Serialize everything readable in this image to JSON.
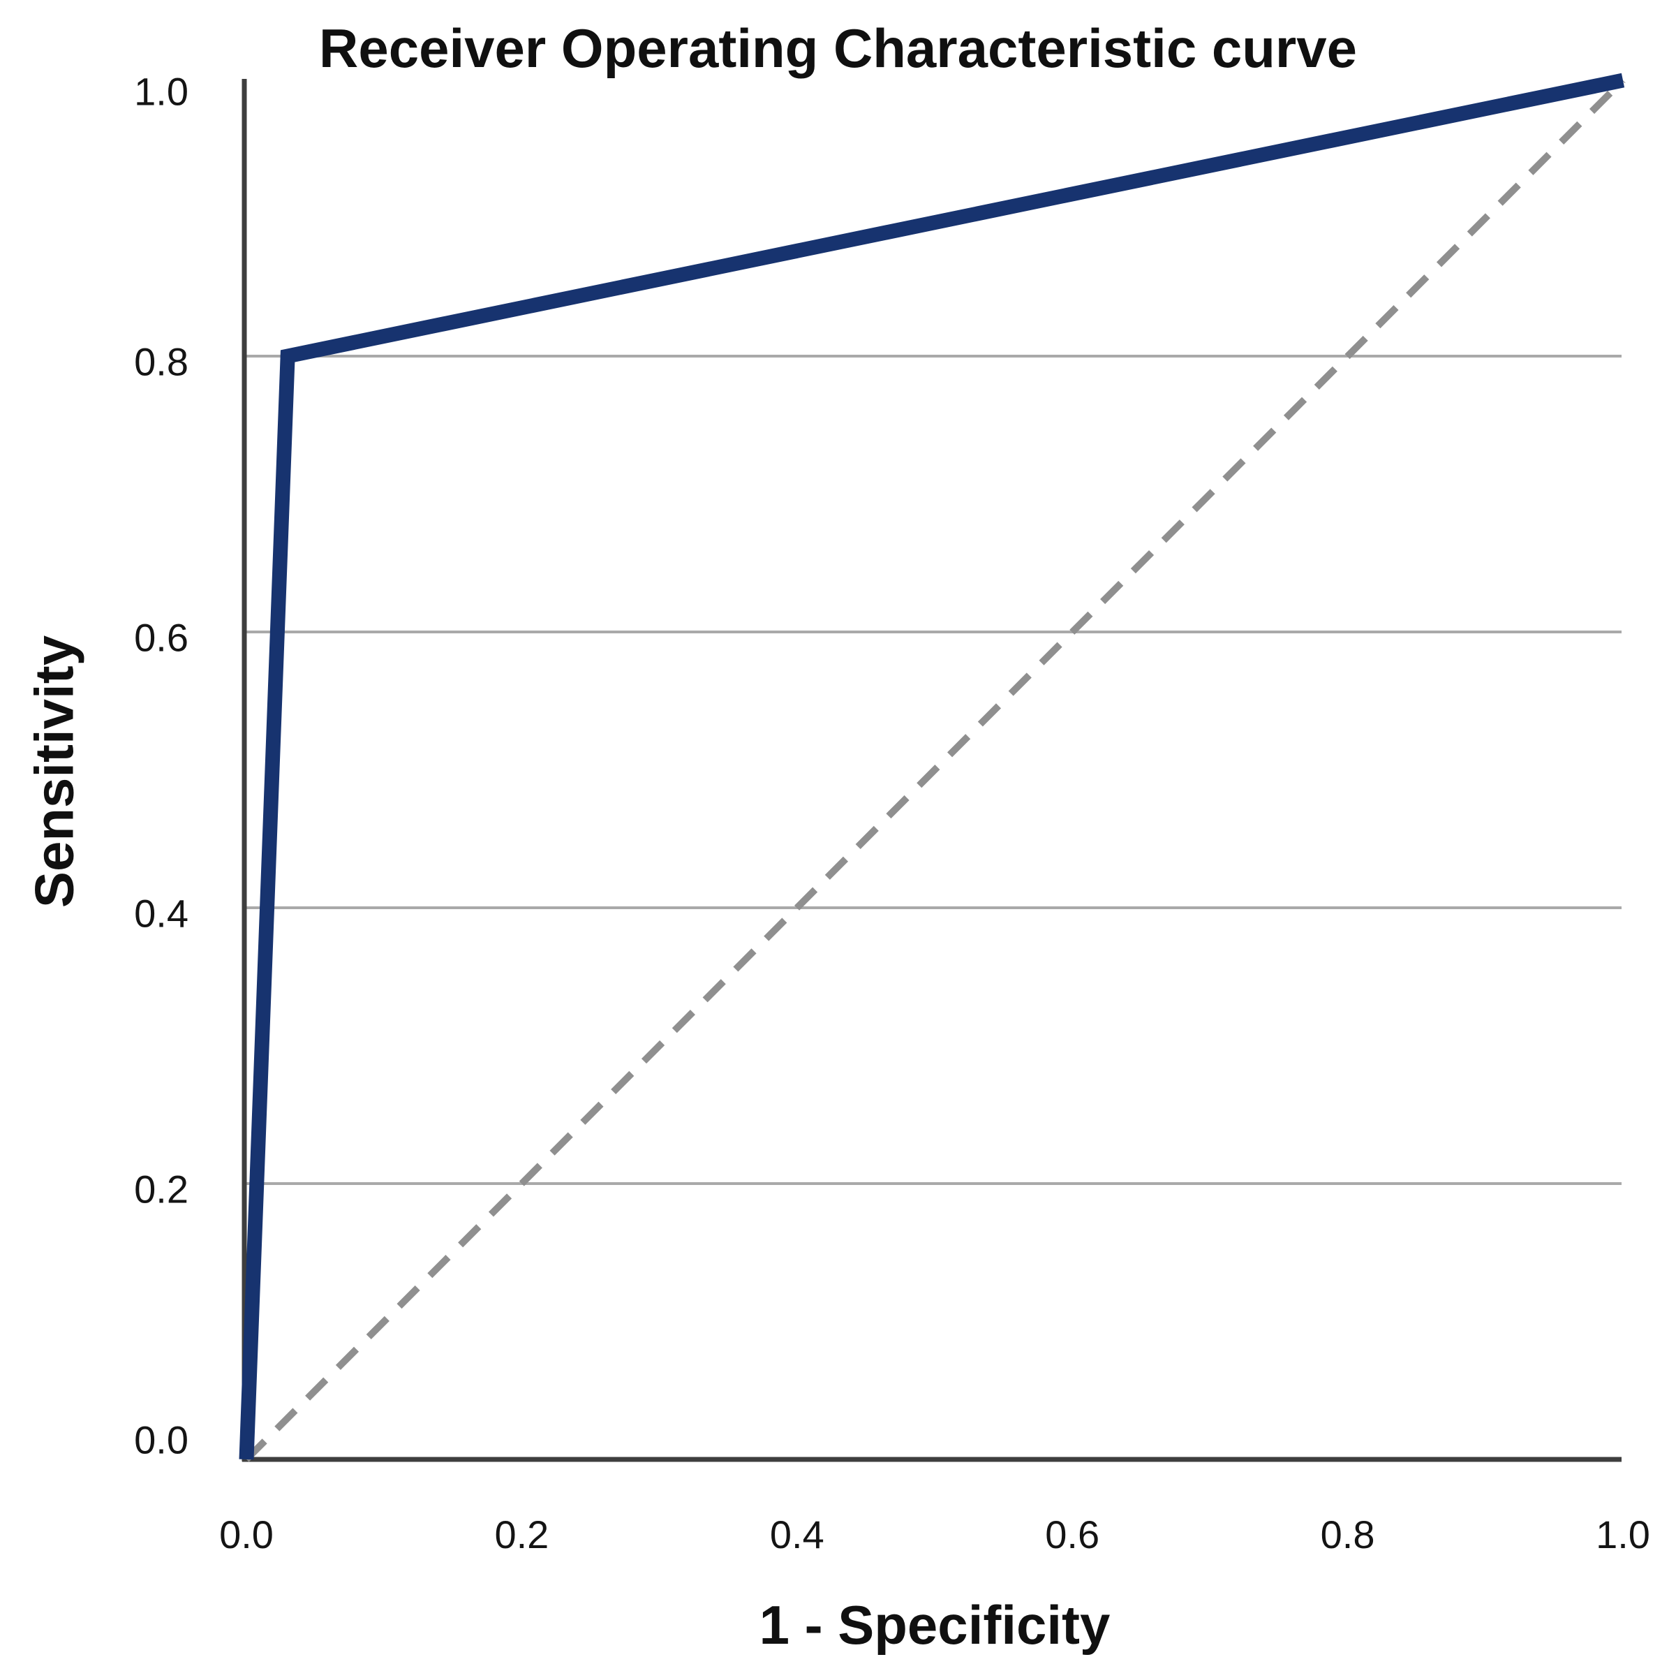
{
  "chart_data": {
    "type": "line",
    "title": "Receiver Operating Characteristic curve",
    "xlabel": "1 - Specificity",
    "ylabel": "Sensitivity",
    "xlim": [
      0.0,
      1.0
    ],
    "ylim": [
      0.0,
      1.0
    ],
    "x_tick_labels": [
      "0.0",
      "0.2",
      "0.4",
      "0.6",
      "0.8",
      "1.0"
    ],
    "x_tick_values": [
      0.0,
      0.2,
      0.4,
      0.6,
      0.8,
      1.0
    ],
    "y_tick_labels": [
      "0.0",
      "0.2",
      "0.4",
      "0.6",
      "0.8",
      "1.0"
    ],
    "y_tick_values": [
      0.0,
      0.2,
      0.4,
      0.6,
      0.8,
      1.0
    ],
    "gridlines_y_values": [
      0.2,
      0.4,
      0.6,
      0.8
    ],
    "legend": "none",
    "series": [
      {
        "name": "ROC curve",
        "style": "solid",
        "color": "#17336f",
        "points": [
          [
            0.0,
            0.0
          ],
          [
            0.03,
            0.8
          ],
          [
            1.0,
            1.0
          ]
        ]
      },
      {
        "name": "Reference diagonal (chance line)",
        "style": "dashed",
        "color": "#8f8f8f",
        "points": [
          [
            0.0,
            0.0
          ],
          [
            1.0,
            1.0
          ]
        ]
      }
    ],
    "colors": {
      "background": "#ffffff",
      "axis": "#3e3e3e",
      "grid": "#a9a9a9",
      "text": "#121212",
      "curve": "#17336f",
      "reference": "#8f8f8f"
    }
  }
}
